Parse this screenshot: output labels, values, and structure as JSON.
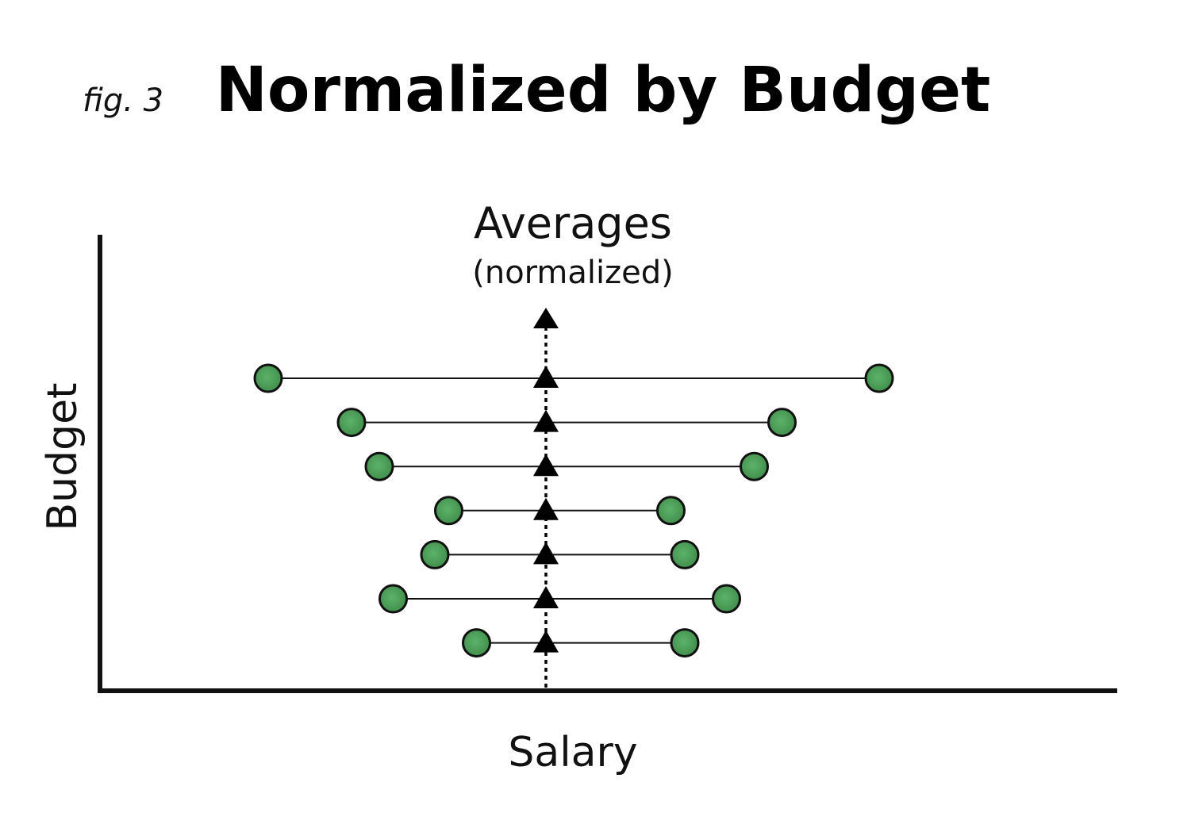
{
  "figure": {
    "fig_label": "fig. 3",
    "title": "Normalized by Budget",
    "averages_label": "Averages",
    "averages_sublabel": "(normalized)",
    "x_axis_label": "Salary",
    "y_axis_label": "Budget"
  },
  "chart_data": {
    "type": "dumbbell",
    "rows": [
      {
        "low": 1.5,
        "high": 5.9
      },
      {
        "low": 2.1,
        "high": 5.2
      },
      {
        "low": 2.3,
        "high": 5.0
      },
      {
        "low": 2.8,
        "high": 4.4
      },
      {
        "low": 2.7,
        "high": 4.5
      },
      {
        "low": 2.4,
        "high": 4.8
      },
      {
        "low": 3.0,
        "high": 4.5
      }
    ],
    "average": 3.5,
    "colors": {
      "dot_fill": "#4c9e58",
      "dot_stroke": "#111111",
      "line": "#111111",
      "marker": "#000000",
      "axis": "#111111"
    }
  }
}
